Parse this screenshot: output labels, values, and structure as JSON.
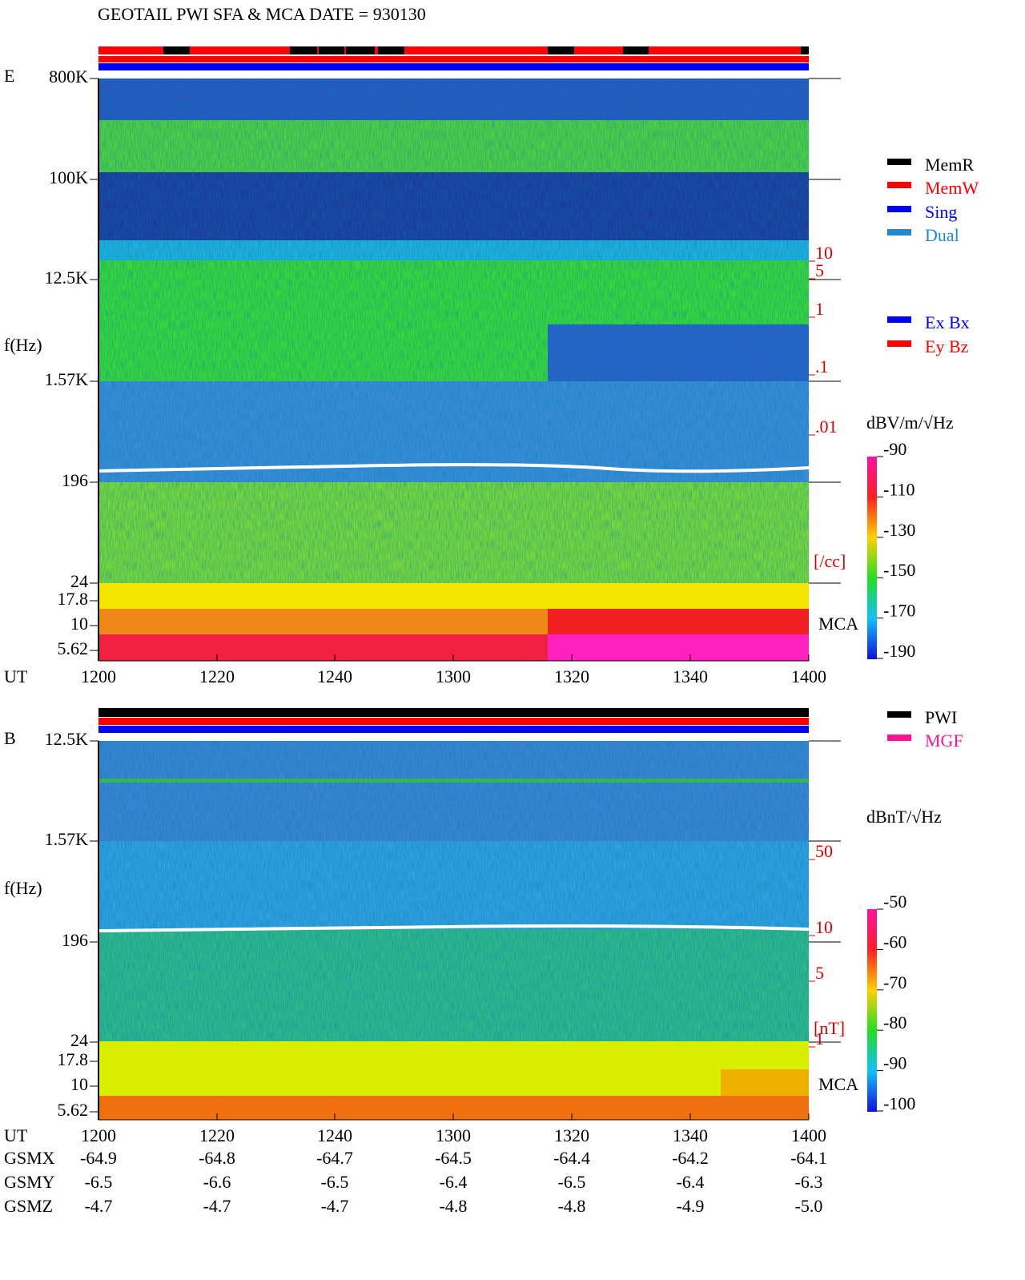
{
  "header": {
    "title": "GEOTAIL  PWI SFA & MCA   DATE = 930130"
  },
  "panel_e": {
    "label": "E",
    "y_label": "f(Hz)",
    "freq_ticks": [
      "800K",
      "100K",
      "12.5K",
      "1.57K",
      "196",
      "24",
      "17.8",
      "10",
      "5.62"
    ],
    "density_ticks": [
      "10",
      "5",
      "1",
      ".1",
      ".01"
    ],
    "density_unit": "[/cc]",
    "mca_label": "MCA",
    "ut_label": "UT",
    "time_ticks": [
      "1200",
      "1220",
      "1240",
      "1300",
      "1320",
      "1340",
      "1400"
    ],
    "legend": [
      {
        "name": "MemR",
        "color": "#000000"
      },
      {
        "name": "MemW",
        "color": "#ff0000"
      },
      {
        "name": "Sing",
        "color": "#0000ff"
      },
      {
        "name": "Dual",
        "color": "#2288cc"
      }
    ],
    "antenna_legend": [
      {
        "name": "Ex Bx",
        "color": "#0000ff"
      },
      {
        "name": "Ey Bz",
        "color": "#ff0000"
      }
    ],
    "colorbar_unit": "dBV/m/√Hz",
    "colorbar_ticks": [
      -90,
      -110,
      -130,
      -150,
      -170,
      -190
    ]
  },
  "panel_b": {
    "label": "B",
    "y_label": "f(Hz)",
    "freq_ticks": [
      "12.5K",
      "1.57K",
      "196",
      "24",
      "17.8",
      "10",
      "5.62"
    ],
    "field_ticks": [
      "50",
      "10",
      "5",
      "1"
    ],
    "field_unit": "[nT]",
    "mca_label": "MCA",
    "ut_label": "UT",
    "time_ticks": [
      "1200",
      "1220",
      "1240",
      "1300",
      "1320",
      "1340",
      "1400"
    ],
    "legend": [
      {
        "name": "PWI",
        "color": "#000000"
      },
      {
        "name": "MGF",
        "color": "#ff1493"
      }
    ],
    "colorbar_unit": "dBnT/√Hz",
    "colorbar_ticks": [
      -50,
      -60,
      -70,
      -80,
      -90,
      -100
    ]
  },
  "orbit": {
    "rows": [
      {
        "label": "GSMX",
        "values": [
          "-64.9",
          "-64.8",
          "-64.7",
          "-64.5",
          "-64.4",
          "-64.2",
          "-64.1"
        ]
      },
      {
        "label": "GSMY",
        "values": [
          "-6.5",
          "-6.6",
          "-6.5",
          "-6.4",
          "-6.5",
          "-6.4",
          "-6.3"
        ]
      },
      {
        "label": "GSMZ",
        "values": [
          "-4.7",
          "-4.7",
          "-4.7",
          "-4.8",
          "-4.8",
          "-4.9",
          "-5.0"
        ]
      }
    ]
  }
}
